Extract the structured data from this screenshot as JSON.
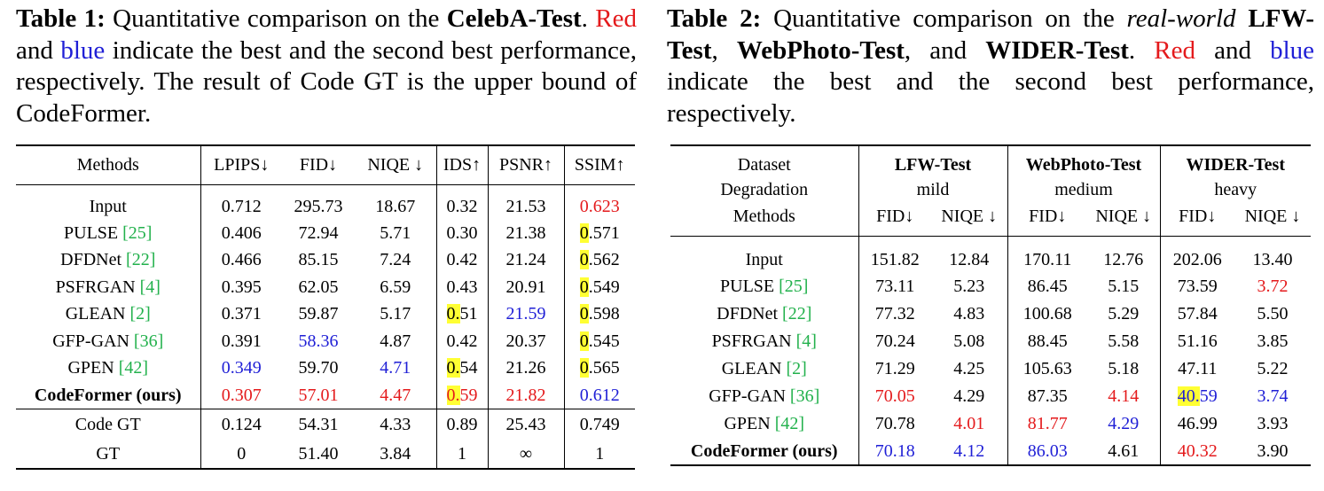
{
  "table1": {
    "caption": {
      "label": "Table 1:",
      "pre": " Quantitative comparison on the ",
      "bold1": "CelebA-Test",
      "mid": ". ",
      "red": "Red",
      "and": " and ",
      "blue": "blue",
      "post": " indicate the best and the second best performance, respectively. The result of Code GT is the upper bound of CodeFormer."
    },
    "headers": [
      "Methods",
      "LPIPS↓",
      "FID↓",
      "NIQE ↓",
      "IDS↑",
      "PSNR↑",
      "SSIM↑"
    ],
    "rows": [
      {
        "m": "Input",
        "ref": "",
        "c": [
          "0.712",
          "295.73",
          "18.67",
          "0.32",
          "21.53",
          "0.623"
        ]
      },
      {
        "m": "PULSE ",
        "ref": "[25]",
        "c": [
          "0.406",
          "72.94",
          "5.71",
          "0.30",
          "21.38",
          "0.571"
        ]
      },
      {
        "m": "DFDNet ",
        "ref": "[22]",
        "c": [
          "0.466",
          "85.15",
          "7.24",
          "0.42",
          "21.24",
          "0.562"
        ]
      },
      {
        "m": "PSFRGAN ",
        "ref": "[4]",
        "c": [
          "0.395",
          "62.05",
          "6.59",
          "0.43",
          "20.91",
          "0.549"
        ]
      },
      {
        "m": "GLEAN ",
        "ref": "[2]",
        "c": [
          "0.371",
          "59.87",
          "5.17",
          "0.51",
          "21.59",
          "0.598"
        ]
      },
      {
        "m": "GFP-GAN ",
        "ref": "[36]",
        "c": [
          "0.391",
          "58.36",
          "4.87",
          "0.42",
          "20.37",
          "0.545"
        ]
      },
      {
        "m": "GPEN ",
        "ref": "[42]",
        "c": [
          "0.349",
          "59.70",
          "4.71",
          "0.54",
          "21.26",
          "0.565"
        ]
      },
      {
        "m": "CodeFormer (ours)",
        "ref": "",
        "c": [
          "0.307",
          "57.01",
          "4.47",
          "0.59",
          "21.82",
          "0.612"
        ]
      }
    ],
    "bottom_rows": [
      {
        "m": "Code GT",
        "c": [
          "0.124",
          "54.31",
          "4.33",
          "0.89",
          "25.43",
          "0.749"
        ]
      },
      {
        "m": "GT",
        "c": [
          "0",
          "51.40",
          "3.84",
          "1",
          "∞",
          "1"
        ]
      }
    ]
  },
  "table2": {
    "caption": {
      "label": "Table 2:",
      "pre": " Quantitative comparison on the ",
      "ital": "real-world",
      "bold1": "LFW-Test",
      "comma": ", ",
      "bold2": "WebPhoto-Test",
      "and1": ", and ",
      "bold3": "WIDER-Test",
      "dot": ". ",
      "red": "Red",
      "and": " and ",
      "blue": "blue",
      "post": " indicate the best and the second best performance, respectively."
    },
    "head": {
      "dataset": "Dataset",
      "degradation": "Degradation",
      "methods": "Methods",
      "lfw": "LFW-Test",
      "web": "WebPhoto-Test",
      "wider": "WIDER-Test",
      "mild": "mild",
      "medium": "medium",
      "heavy": "heavy",
      "fid": "FID↓",
      "niqe": "NIQE ↓"
    },
    "rows": [
      {
        "m": "Input",
        "ref": "",
        "c": [
          "151.82",
          "12.84",
          "170.11",
          "12.76",
          "202.06",
          "13.40"
        ]
      },
      {
        "m": "PULSE ",
        "ref": "[25]",
        "c": [
          "73.11",
          "5.23",
          "86.45",
          "5.15",
          "73.59",
          "3.72"
        ]
      },
      {
        "m": "DFDNet ",
        "ref": "[22]",
        "c": [
          "77.32",
          "4.83",
          "100.68",
          "5.29",
          "57.84",
          "5.50"
        ]
      },
      {
        "m": "PSFRGAN ",
        "ref": "[4]",
        "c": [
          "70.24",
          "5.08",
          "88.45",
          "5.58",
          "51.16",
          "3.85"
        ]
      },
      {
        "m": "GLEAN ",
        "ref": "[2]",
        "c": [
          "71.29",
          "4.25",
          "105.63",
          "5.18",
          "47.11",
          "5.22"
        ]
      },
      {
        "m": "GFP-GAN ",
        "ref": "[36]",
        "c": [
          "70.05",
          "4.29",
          "87.35",
          "4.14",
          "40.59",
          "3.74"
        ]
      },
      {
        "m": "GPEN ",
        "ref": "[42]",
        "c": [
          "70.78",
          "4.01",
          "81.77",
          "4.29",
          "46.99",
          "3.93"
        ]
      },
      {
        "m": "CodeFormer (ours)",
        "ref": "",
        "c": [
          "70.18",
          "4.12",
          "86.03",
          "4.61",
          "40.32",
          "3.90"
        ]
      }
    ]
  },
  "colors": {
    "red": "#e41a1c",
    "blue": "#1f1fd6",
    "green": "#22b14c",
    "highlight": "#ffff33"
  }
}
